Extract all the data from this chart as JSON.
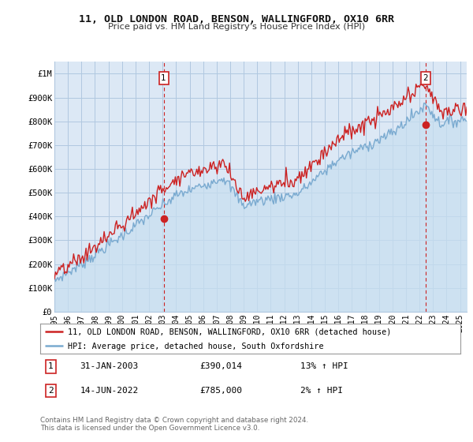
{
  "title": "11, OLD LONDON ROAD, BENSON, WALLINGFORD, OX10 6RR",
  "subtitle": "Price paid vs. HM Land Registry's House Price Index (HPI)",
  "xlim_start": 1995.0,
  "xlim_end": 2025.5,
  "ylim_bottom": 0,
  "ylim_top": 1050000,
  "yticks": [
    0,
    100000,
    200000,
    300000,
    400000,
    500000,
    600000,
    700000,
    800000,
    900000,
    1000000
  ],
  "ytick_labels": [
    "£0",
    "£100K",
    "£200K",
    "£300K",
    "£400K",
    "£500K",
    "£600K",
    "£700K",
    "£800K",
    "£900K",
    "£1M"
  ],
  "hpi_color": "#7aaad0",
  "hpi_fill_color": "#c8dff0",
  "price_color": "#cc2222",
  "marker1_x": 2003.08,
  "marker1_y": 390014,
  "marker2_x": 2022.45,
  "marker2_y": 785000,
  "legend_line1": "11, OLD LONDON ROAD, BENSON, WALLINGFORD, OX10 6RR (detached house)",
  "legend_line2": "HPI: Average price, detached house, South Oxfordshire",
  "table_row1": [
    "1",
    "31-JAN-2003",
    "£390,014",
    "13% ↑ HPI"
  ],
  "table_row2": [
    "2",
    "14-JUN-2022",
    "£785,000",
    "2% ↑ HPI"
  ],
  "footnote": "Contains HM Land Registry data © Crown copyright and database right 2024.\nThis data is licensed under the Open Government Licence v3.0.",
  "bg_color": "#ffffff",
  "plot_bg_color": "#dce8f5",
  "grid_color": "#b0c8e0",
  "xticks": [
    1995,
    1996,
    1997,
    1998,
    1999,
    2000,
    2001,
    2002,
    2003,
    2004,
    2005,
    2006,
    2007,
    2008,
    2009,
    2010,
    2011,
    2012,
    2013,
    2014,
    2015,
    2016,
    2017,
    2018,
    2019,
    2020,
    2021,
    2022,
    2023,
    2024,
    2025
  ]
}
